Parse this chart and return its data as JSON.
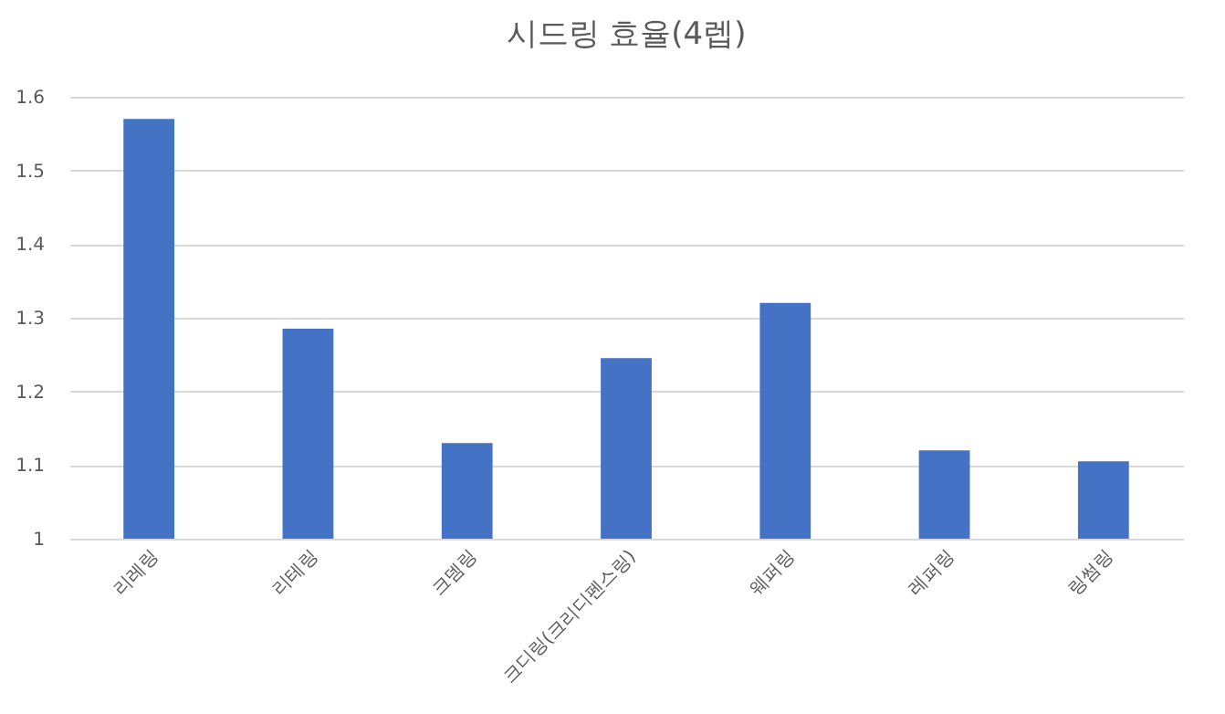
{
  "chart_data": {
    "type": "bar",
    "title": "시드링 효율(4렙)",
    "categories": [
      "리레링",
      "리테링",
      "크뎀링",
      "크디링(크리디펜스링)",
      "웨퍼링",
      "레퍼링",
      "링썸링"
    ],
    "values": [
      1.57,
      1.285,
      1.13,
      1.245,
      1.32,
      1.12,
      1.105
    ],
    "color": "#4472c4",
    "ylim": [
      1,
      1.6
    ],
    "yticks": [
      1,
      1.1,
      1.2,
      1.3,
      1.4,
      1.5,
      1.6
    ],
    "grid": "y"
  }
}
